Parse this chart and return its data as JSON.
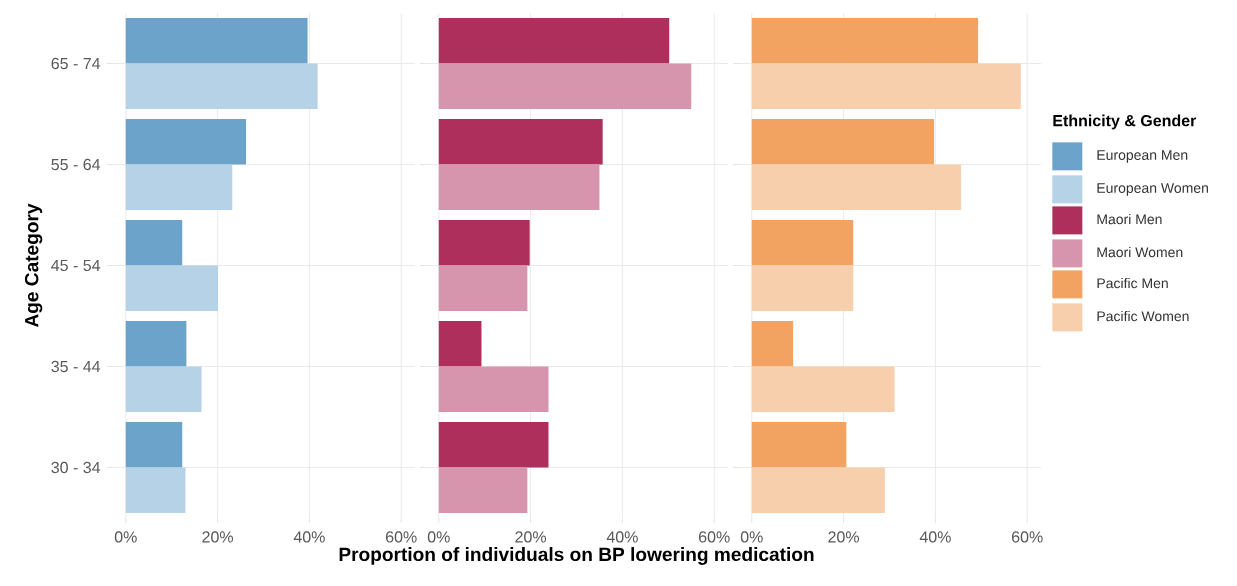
{
  "chart_data": [
    {
      "type": "bar",
      "orientation": "horizontal",
      "ylabel": "Age Category",
      "legend_title": "Ethnicity & Gender",
      "legend": "right",
      "grid": true,
      "categories": [
        "65 - 74",
        "55 - 64",
        "45 - 54",
        "35 - 44",
        "30 - 34"
      ],
      "series": [
        {
          "name": "European Men",
          "color": "#6ba3cb",
          "values": [
            39.6,
            26.2,
            12.3,
            13.2,
            12.3
          ]
        },
        {
          "name": "European Women",
          "color": "#b6d2e7",
          "values": [
            41.8,
            23.2,
            20.1,
            16.5,
            13.0
          ]
        }
      ],
      "xlim": [
        -3,
        63
      ],
      "xticks": [
        {
          "value": 0,
          "label": "0%"
        },
        {
          "value": 20,
          "label": "20%"
        },
        {
          "value": 40,
          "label": "40%"
        },
        {
          "value": 60,
          "label": "60%"
        }
      ]
    },
    {
      "type": "bar",
      "orientation": "horizontal",
      "xlabel": "Proportion of individuals on BP lowering medication",
      "legend": "right",
      "grid": true,
      "tick_labels": "x",
      "categories": [
        null,
        null,
        null,
        null,
        null
      ],
      "series": [
        {
          "name": "Maori Men",
          "color": "#ae2f5c",
          "values": [
            50.2,
            35.7,
            19.8,
            9.3,
            23.9
          ]
        },
        {
          "name": "Maori Women",
          "color": "#d795ad",
          "values": [
            55.0,
            35.0,
            19.3,
            23.9,
            19.3
          ]
        }
      ],
      "xlim": [
        -3,
        63
      ],
      "xticks": [
        {
          "value": 0,
          "label": "0%"
        },
        {
          "value": 20,
          "label": "20%"
        },
        {
          "value": 40,
          "label": "40%"
        },
        {
          "value": 60,
          "label": "60%"
        }
      ]
    },
    {
      "type": "bar",
      "orientation": "horizontal",
      "legend": "right",
      "grid": true,
      "tick_labels": "x",
      "categories": [
        null,
        null,
        null,
        null,
        null
      ],
      "series": [
        {
          "name": "Pacific Men",
          "color": "#f2a362",
          "values": [
            49.3,
            39.7,
            22.1,
            9.0,
            20.6
          ]
        },
        {
          "name": "Pacific Women",
          "color": "#f8cfad",
          "values": [
            58.6,
            45.6,
            22.1,
            31.1,
            29.0
          ]
        }
      ],
      "xlim": [
        -3,
        63
      ],
      "xticks": [
        {
          "value": 0,
          "label": "0%"
        },
        {
          "value": 20,
          "label": "20%"
        },
        {
          "value": 40,
          "label": "40%"
        },
        {
          "value": 60,
          "label": "60%"
        }
      ]
    }
  ]
}
